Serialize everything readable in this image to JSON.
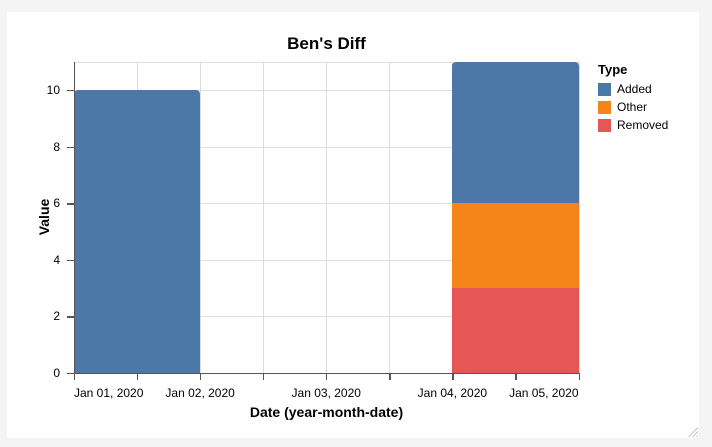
{
  "window": {
    "background": "#f4f4f5",
    "card_background": "#ffffff"
  },
  "icons": {
    "resize_grip": "resize-grip-diagonal-lines"
  },
  "chart_data": {
    "type": "bar",
    "stacked": true,
    "title": "Ben's Diff",
    "xlabel": "Date (year-month-date)",
    "ylabel": "Value",
    "x_axis": {
      "tick_labels": [
        "Jan 01, 2020",
        "Jan 02, 2020",
        "Jan 03, 2020",
        "Jan 04, 2020",
        "Jan 05, 2020"
      ],
      "minor_ticks_between_days": 1
    },
    "y_axis": {
      "ticks": [
        0,
        2,
        4,
        6,
        8,
        10
      ],
      "lim": [
        0,
        11
      ]
    },
    "grid": true,
    "legend": {
      "title": "Type",
      "position": "right",
      "entries": [
        {
          "label": "Added",
          "color": "#4c78a8"
        },
        {
          "label": "Other",
          "color": "#f58518"
        },
        {
          "label": "Removed",
          "color": "#e45756"
        }
      ]
    },
    "bars": [
      {
        "x_span": [
          "Jan 01, 2020",
          "Jan 02, 2020"
        ],
        "day_start": 0,
        "day_end": 1,
        "segments": [
          {
            "type": "Added",
            "value": 10
          }
        ]
      },
      {
        "x_span": [
          "Jan 04, 2020",
          "Jan 05, 2020"
        ],
        "day_start": 3,
        "day_end": 4,
        "segments": [
          {
            "type": "Removed",
            "value": 3
          },
          {
            "type": "Other",
            "value": 3
          },
          {
            "type": "Added",
            "value": 5
          }
        ]
      }
    ],
    "style": {
      "grid_color": "#dddddd",
      "frame_color": "#dddddd",
      "axis_color": "#555555",
      "text_color": "#000000"
    }
  }
}
